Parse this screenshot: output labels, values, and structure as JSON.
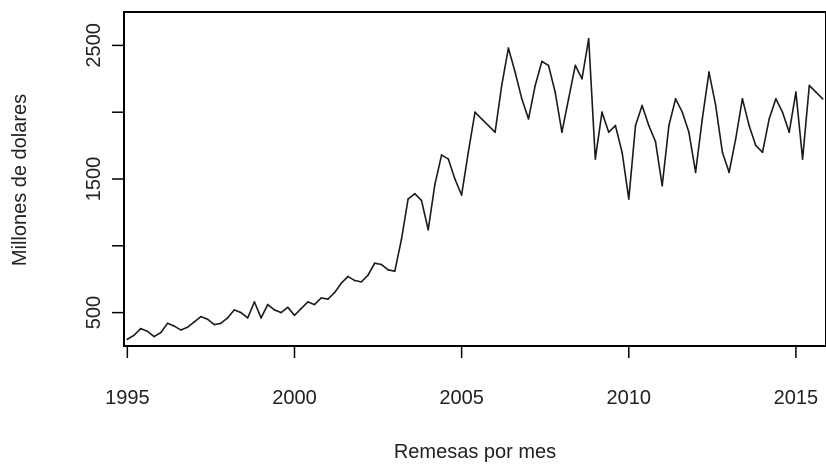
{
  "chart_data": {
    "type": "line",
    "title": "",
    "xlabel": "Remesas por mes",
    "ylabel": "Millones de dolares",
    "xlim": [
      1994.9,
      2015.9
    ],
    "ylim": [
      250,
      2750
    ],
    "x_ticks": [
      1995,
      2000,
      2005,
      2010,
      2015
    ],
    "x_tick_labels": [
      "1995",
      "2000",
      "2005",
      "2010",
      "2015"
    ],
    "y_ticks": [
      500,
      1500,
      2500
    ],
    "y_tick_labels": [
      "500",
      "1500",
      "2500"
    ],
    "grid": false,
    "legend": "none",
    "colors": {
      "line": "#1a1a1a",
      "axis": "#000000"
    },
    "series": [
      {
        "x": [
          1995.0,
          1995.2,
          1995.4,
          1995.6,
          1995.8,
          1996.0,
          1996.2,
          1996.4,
          1996.6,
          1996.8,
          1997.0,
          1997.2,
          1997.4,
          1997.6,
          1997.8,
          1998.0,
          1998.2,
          1998.4,
          1998.6,
          1998.8,
          1999.0,
          1999.2,
          1999.4,
          1999.6,
          1999.8,
          2000.0,
          2000.2,
          2000.4,
          2000.6,
          2000.8,
          2001.0,
          2001.2,
          2001.4,
          2001.6,
          2001.8,
          2002.0,
          2002.2,
          2002.4,
          2002.6,
          2002.8,
          2003.0,
          2003.2,
          2003.4,
          2003.6,
          2003.8,
          2004.0,
          2004.2,
          2004.4,
          2004.6,
          2004.8,
          2005.0,
          2005.2,
          2005.4,
          2005.6,
          2005.8,
          2006.0,
          2006.2,
          2006.4,
          2006.6,
          2006.8,
          2007.0,
          2007.2,
          2007.4,
          2007.6,
          2007.8,
          2008.0,
          2008.2,
          2008.4,
          2008.6,
          2008.8,
          2009.0,
          2009.2,
          2009.4,
          2009.6,
          2009.8,
          2010.0,
          2010.2,
          2010.4,
          2010.6,
          2010.8,
          2011.0,
          2011.2,
          2011.4,
          2011.6,
          2011.8,
          2012.0,
          2012.2,
          2012.4,
          2012.6,
          2012.8,
          2013.0,
          2013.2,
          2013.4,
          2013.6,
          2013.8,
          2014.0,
          2014.2,
          2014.4,
          2014.6,
          2014.8,
          2015.0,
          2015.2,
          2015.4,
          2015.6,
          2015.8
        ],
        "values": [
          300,
          330,
          380,
          360,
          320,
          350,
          420,
          400,
          370,
          390,
          430,
          470,
          450,
          410,
          420,
          460,
          520,
          500,
          460,
          580,
          460,
          560,
          520,
          500,
          540,
          480,
          530,
          580,
          560,
          610,
          600,
          650,
          720,
          770,
          740,
          730,
          780,
          870,
          860,
          820,
          810,
          1050,
          1350,
          1390,
          1340,
          1120,
          1460,
          1680,
          1650,
          1500,
          1380,
          1700,
          2000,
          1950,
          1900,
          1850,
          2200,
          2480,
          2300,
          2100,
          1950,
          2200,
          2380,
          2350,
          2150,
          1850,
          2100,
          2350,
          2250,
          2550,
          1650,
          2000,
          1850,
          1900,
          1700,
          1350,
          1900,
          2050,
          1900,
          1780,
          1450,
          1900,
          2100,
          2000,
          1850,
          1550,
          1950,
          2300,
          2050,
          1700,
          1550,
          1800,
          2100,
          1900,
          1750,
          1700,
          1950,
          2100,
          2000,
          1850,
          2150,
          1650,
          2200,
          2150,
          2100
        ]
      }
    ]
  }
}
